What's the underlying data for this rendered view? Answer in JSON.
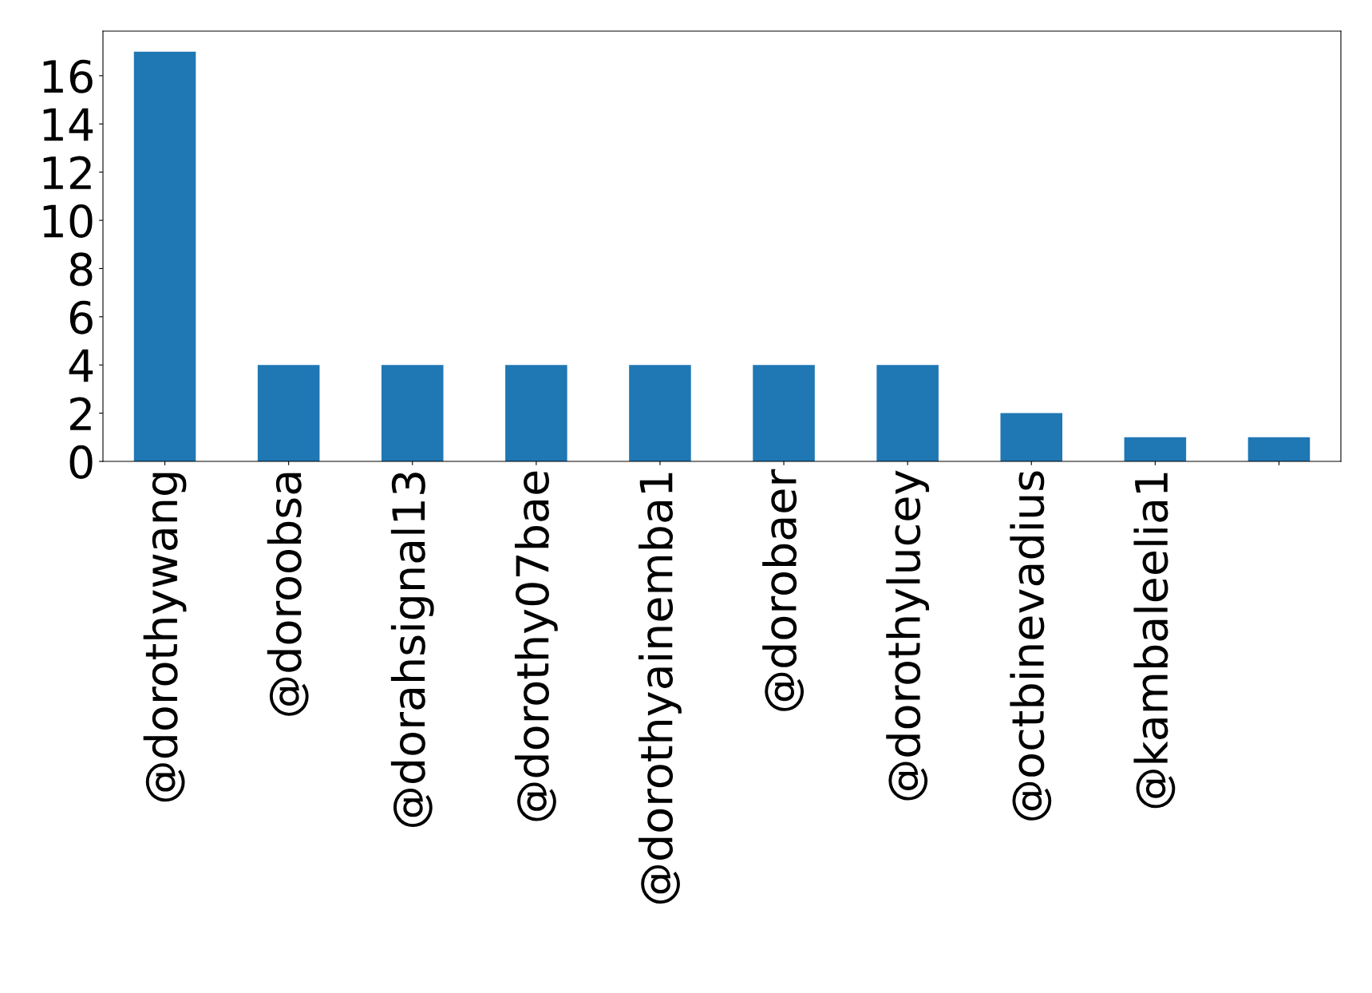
{
  "chart_data": {
    "type": "bar",
    "categories": [
      "@dorothywang",
      "@doroobsa",
      "@dorahsignal13",
      "@dorothy07bae",
      "@dorothyainemba1",
      "@dorobaer",
      "@dorothylucey",
      "@octbinevadius",
      "@kambaleelia1",
      null
    ],
    "values": [
      17,
      4,
      4,
      4,
      4,
      4,
      4,
      2,
      1,
      1
    ],
    "color": "#1f77b4",
    "ylim": [
      0,
      17.85
    ],
    "yticks": [
      0,
      2,
      4,
      6,
      8,
      10,
      12,
      14,
      16
    ],
    "grid": false,
    "legend": false
  }
}
